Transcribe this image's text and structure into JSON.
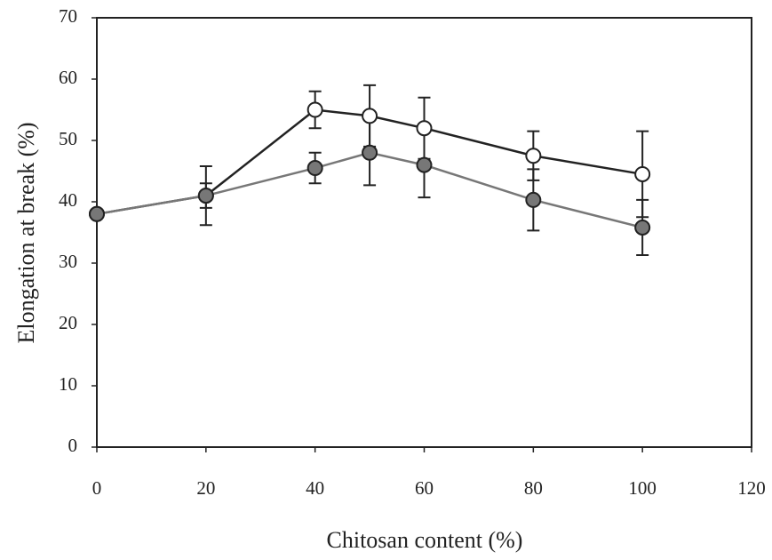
{
  "chart_data": {
    "type": "line",
    "x_label": "Chitosan content (%)",
    "y_label": "Elongation at break (%)",
    "x": [
      0,
      20,
      40,
      50,
      60,
      80,
      100
    ],
    "series": [
      {
        "color": "#222222",
        "marker": "open-circle",
        "values": [
          38,
          41,
          55,
          54,
          52,
          47.5,
          44.5
        ],
        "errors": [
          null,
          4.8,
          3,
          5,
          5,
          4,
          7
        ]
      },
      {
        "color": "#777777",
        "marker": "filled-circle",
        "values": [
          38,
          41,
          45.5,
          48,
          46,
          40.3,
          35.8
        ],
        "errors": [
          null,
          2,
          2.5,
          5.3,
          5.3,
          5,
          4.5
        ]
      }
    ],
    "xlim": [
      0,
      120
    ],
    "xticks": [
      0,
      20,
      40,
      60,
      80,
      100,
      120
    ],
    "ylim": [
      0,
      70
    ],
    "yticks": [
      0,
      10,
      20,
      30,
      40,
      50,
      60,
      70
    ],
    "grid": false
  }
}
